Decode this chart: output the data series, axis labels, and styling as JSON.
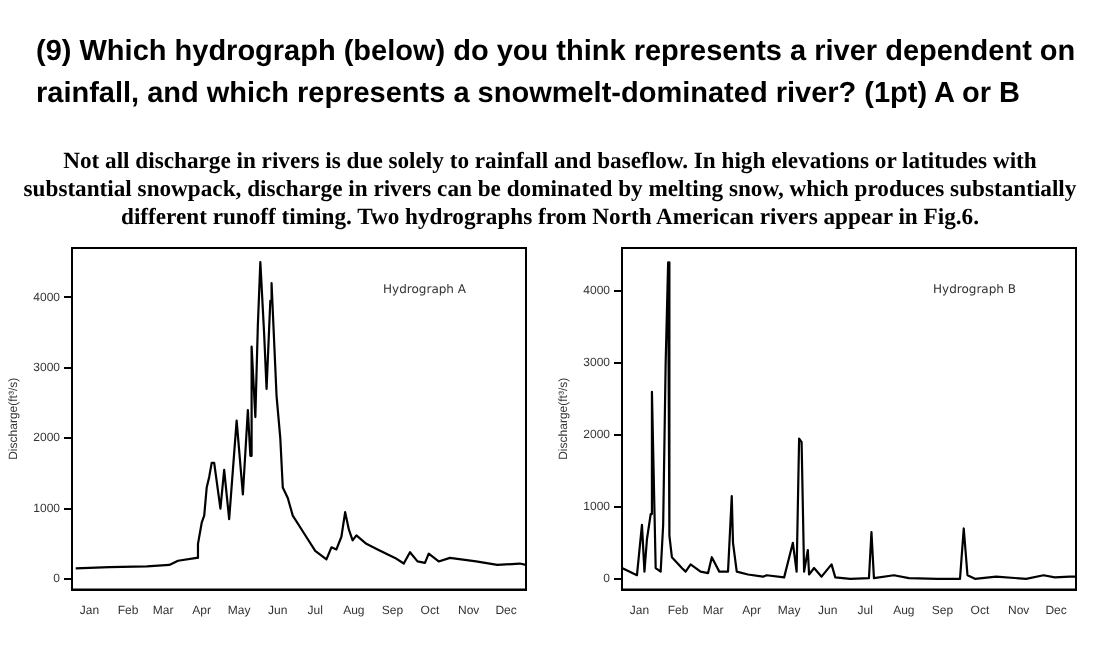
{
  "chart_data": [
    {
      "type": "line",
      "title": "(9) Which hydrograph (below) do you think represents a river dependent on rainfall, and which represents a snowmelt-dominated river? (1pt)   A  or  B",
      "subtitle": "Not all discharge in rivers is due solely to rainfall and baseflow.  In high elevations or latitudes with substantial snowpack, discharge in rivers can be dominated by melting snow, which produces substantially different runoff timing.  Two hydrographs from North American rivers appear in Fig.6.",
      "ylabel": "Discharge(ft³/s)",
      "annotations": [
        "Hydrograph A"
      ],
      "grid": false,
      "legend": false,
      "marker": "none",
      "line_style": "solid",
      "xlim": [
        "--01-01",
        "--12-31"
      ],
      "xticks": [
        {
          "value": "--01-15",
          "label": "Jan"
        },
        {
          "value": "--02-15",
          "label": "Feb"
        },
        {
          "value": "--03-15",
          "label": "Mar"
        },
        {
          "value": "--04-15",
          "label": "Apr"
        },
        {
          "value": "--05-15",
          "label": "May"
        },
        {
          "value": "--06-15",
          "label": "Jun"
        },
        {
          "value": "--07-15",
          "label": "Jul"
        },
        {
          "value": "--08-15",
          "label": "Aug"
        },
        {
          "value": "--09-15",
          "label": "Sep"
        },
        {
          "value": "--10-15",
          "label": "Oct"
        },
        {
          "value": "--11-15",
          "label": "Nov"
        },
        {
          "value": "--12-15",
          "label": "Dec"
        }
      ],
      "ylim": [
        -150,
        4700
      ],
      "yticks": [
        0,
        1000,
        2000,
        3000,
        4000
      ],
      "series": [
        {
          "color": "#000000",
          "x": [
            "--01-04",
            "--01-31",
            "--03-02",
            "--03-20",
            "--03-27",
            "--04-11",
            "--04-12",
            "--04-15",
            "--04-17",
            "--04-19",
            "--04-21",
            "--04-23",
            "--04-25",
            "--04-30",
            "--05-03",
            "--05-07",
            "--05-13",
            "--05-18",
            "--05-22",
            "--05-24",
            "--05-25",
            "--05-28",
            "--05-30",
            "--06-01",
            "--06-04",
            "--06-06",
            "--06-09",
            "--06-10",
            "--06-13",
            "--06-14",
            "--06-17",
            "--06-19",
            "--06-23",
            "--06-27",
            "--07-06",
            "--07-15",
            "--07-24",
            "--07-28",
            "--08-01",
            "--08-05",
            "--08-08",
            "--08-11",
            "--08-14",
            "--08-17",
            "--08-25",
            "--09-03",
            "--09-17",
            "--09-24",
            "--09-29",
            "--10-05",
            "--10-11",
            "--10-14",
            "--10-22",
            "--10-31",
            "--11-21",
            "--12-08",
            "--12-26",
            "--12-31"
          ],
          "values": [
            150,
            170,
            180,
            200,
            260,
            300,
            500,
            800,
            900,
            1300,
            1450,
            1650,
            1650,
            1000,
            1550,
            850,
            2250,
            1200,
            2400,
            1750,
            3300,
            2300,
            3600,
            4500,
            3500,
            2700,
            3950,
            4200,
            3000,
            2600,
            2000,
            1300,
            1150,
            900,
            650,
            400,
            280,
            450,
            420,
            600,
            950,
            700,
            550,
            620,
            500,
            420,
            300,
            220,
            380,
            250,
            230,
            360,
            250,
            300,
            250,
            200,
            220,
            200
          ]
        }
      ]
    },
    {
      "type": "line",
      "ylabel": "Discharge(ft³/s)",
      "annotations": [
        "Hydrograph B"
      ],
      "grid": false,
      "legend": false,
      "marker": "none",
      "line_style": "solid",
      "xlim": [
        "--01-01",
        "--12-31"
      ],
      "xticks": [
        {
          "value": "--01-15",
          "label": "Jan"
        },
        {
          "value": "--02-15",
          "label": "Feb"
        },
        {
          "value": "--03-15",
          "label": "Mar"
        },
        {
          "value": "--04-15",
          "label": "Apr"
        },
        {
          "value": "--05-15",
          "label": "May"
        },
        {
          "value": "--06-15",
          "label": "Jun"
        },
        {
          "value": "--07-15",
          "label": "Jul"
        },
        {
          "value": "--08-15",
          "label": "Aug"
        },
        {
          "value": "--09-15",
          "label": "Sep"
        },
        {
          "value": "--10-15",
          "label": "Oct"
        },
        {
          "value": "--11-15",
          "label": "Nov"
        },
        {
          "value": "--12-15",
          "label": "Dec"
        }
      ],
      "ylim": [
        -150,
        4600
      ],
      "yticks": [
        0,
        1000,
        2000,
        3000,
        4000
      ],
      "series": [
        {
          "color": "#000000",
          "x": [
            "--01-01",
            "--01-13",
            "--01-17",
            "--01-19",
            "--01-21",
            "--01-24",
            "--01-25",
            "--01-28",
            "--02-01",
            "--02-03",
            "--02-05",
            "--02-07",
            "--02-08",
            "--02-10",
            "--02-18",
            "--02-21",
            "--02-25",
            "--03-05",
            "--03-11",
            "--03-14",
            "--03-20",
            "--03-27",
            "--03-30",
            "--03-31",
            "--04-03",
            "--04-12",
            "--04-24",
            "--04-27",
            "--05-11",
            "--05-18",
            "--05-21",
            "--05-23",
            "--05-25",
            "--05-27",
            "--05-30",
            "--05-31",
            "--06-04",
            "--06-10",
            "--06-18",
            "--06-21",
            "--07-03",
            "--07-18",
            "--07-20",
            "--07-22",
            "--08-07",
            "--08-19",
            "--09-11",
            "--09-29",
            "--10-02",
            "--10-05",
            "--10-11",
            "--10-28",
            "--11-21",
            "--12-05",
            "--12-14",
            "--12-26",
            "--12-31"
          ],
          "values": [
            150,
            50,
            750,
            100,
            550,
            900,
            2600,
            150,
            100,
            750,
            3000,
            4400,
            600,
            300,
            150,
            100,
            200,
            100,
            80,
            300,
            100,
            100,
            1150,
            500,
            100,
            60,
            30,
            50,
            20,
            500,
            100,
            1950,
            1900,
            100,
            400,
            60,
            150,
            30,
            200,
            20,
            0,
            10,
            650,
            10,
            50,
            10,
            0,
            0,
            700,
            50,
            0,
            30,
            0,
            50,
            20,
            30,
            30
          ]
        }
      ]
    }
  ]
}
